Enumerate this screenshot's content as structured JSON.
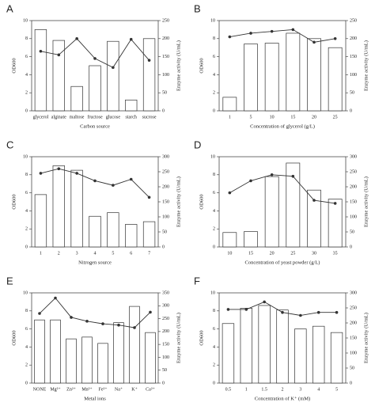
{
  "chart_data": [
    {
      "type": "combo",
      "title": "A",
      "xlabel": "Carbon source",
      "ylabel": "OD600",
      "y2label": "Enzyme activity (U/mL)",
      "categories": [
        "glycerol",
        "alginate",
        "maltose",
        "fructose",
        "glucose",
        "starch",
        "sucrose"
      ],
      "series": [
        {
          "color": "#ffffff",
          "values": [
            9.0,
            7.8,
            2.7,
            5.0,
            7.7,
            1.2,
            8.0
          ]
        },
        {
          "color": "#333333",
          "axis": "y2",
          "values": [
            165,
            155,
            200,
            145,
            120,
            198,
            140
          ]
        }
      ],
      "ylim": [
        0,
        10
      ],
      "yticks": [
        0,
        2,
        4,
        6,
        8,
        10
      ],
      "y2lim": [
        0,
        250
      ],
      "y2ticks": [
        0,
        50,
        100,
        150,
        200,
        250
      ]
    },
    {
      "type": "combo",
      "title": "B",
      "xlabel": "Concentration of glycerol (g/L)",
      "ylabel": "OD600",
      "y2label": "Enzyme activity (U/mL)",
      "categories": [
        "1",
        "5",
        "10",
        "15",
        "20",
        "25"
      ],
      "series": [
        {
          "color": "#ffffff",
          "values": [
            1.5,
            7.4,
            7.5,
            8.6,
            8.0,
            7.0
          ]
        },
        {
          "color": "#333333",
          "axis": "y2",
          "values": [
            205,
            215,
            220,
            225,
            190,
            200
          ]
        }
      ],
      "ylim": [
        0,
        10
      ],
      "yticks": [
        0,
        2,
        4,
        6,
        8,
        10
      ],
      "y2lim": [
        0,
        250
      ],
      "y2ticks": [
        0,
        50,
        100,
        150,
        200,
        250
      ]
    },
    {
      "type": "combo",
      "title": "C",
      "xlabel": "Nitrogen source",
      "ylabel": "OD600",
      "y2label": "Enzyme activity (U/mL)",
      "categories": [
        "1",
        "2",
        "3",
        "4",
        "5",
        "6",
        "7"
      ],
      "series": [
        {
          "color": "#ffffff",
          "values": [
            5.8,
            9.0,
            8.5,
            3.4,
            3.8,
            2.5,
            2.8
          ]
        },
        {
          "color": "#333333",
          "axis": "y2",
          "values": [
            245,
            260,
            245,
            220,
            205,
            225,
            165
          ]
        }
      ],
      "ylim": [
        0,
        10
      ],
      "yticks": [
        0,
        2,
        4,
        6,
        8,
        10
      ],
      "y2lim": [
        0,
        300
      ],
      "y2ticks": [
        0,
        50,
        100,
        150,
        200,
        250,
        300
      ]
    },
    {
      "type": "combo",
      "title": "D",
      "xlabel": "Concentration of yeast powder (g/L)",
      "ylabel": "OD600",
      "y2label": "Enzyme activity (U/mL)",
      "categories": [
        "10",
        "15",
        "20",
        "25",
        "30",
        "35"
      ],
      "series": [
        {
          "color": "#ffffff",
          "values": [
            1.6,
            1.7,
            7.8,
            9.3,
            6.3,
            5.3
          ]
        },
        {
          "color": "#333333",
          "axis": "y2",
          "values": [
            180,
            220,
            240,
            235,
            155,
            145
          ]
        }
      ],
      "ylim": [
        0,
        10
      ],
      "yticks": [
        0,
        2,
        4,
        6,
        8,
        10
      ],
      "y2lim": [
        0,
        300
      ],
      "y2ticks": [
        0,
        50,
        100,
        150,
        200,
        250,
        300
      ]
    },
    {
      "type": "combo",
      "title": "E",
      "xlabel": "Metal ions",
      "ylabel": "OD600",
      "y2label": "Enzyme activity (U/mL)",
      "categories": [
        "NONE",
        "Mg²⁺",
        "Zn²⁺",
        "Mn²⁺",
        "Fe²⁺",
        "Na⁺",
        "K⁺",
        "Ca²⁺"
      ],
      "series": [
        {
          "color": "#ffffff",
          "values": [
            7.0,
            7.0,
            4.9,
            5.1,
            4.4,
            6.7,
            8.5,
            5.6
          ]
        },
        {
          "color": "#333333",
          "axis": "y2",
          "values": [
            270,
            330,
            255,
            240,
            230,
            225,
            215,
            275
          ]
        }
      ],
      "ylim": [
        0,
        10
      ],
      "yticks": [
        0,
        2,
        4,
        6,
        8,
        10
      ],
      "y2lim": [
        0,
        350
      ],
      "y2ticks": [
        0,
        50,
        100,
        150,
        200,
        250,
        300,
        350
      ]
    },
    {
      "type": "combo",
      "title": "F",
      "xlabel": "Concentration of K⁺ (mM)",
      "ylabel": "OD600",
      "y2label": "Enzyme activity (U/mL)",
      "categories": [
        "0.5",
        "1",
        "1.5",
        "2",
        "3",
        "4",
        "5"
      ],
      "series": [
        {
          "color": "#ffffff",
          "values": [
            6.6,
            8.3,
            8.6,
            8.1,
            6.0,
            6.3,
            5.6
          ]
        },
        {
          "color": "#333333",
          "axis": "y2",
          "values": [
            245,
            245,
            270,
            235,
            225,
            235,
            235
          ]
        }
      ],
      "ylim": [
        0,
        10
      ],
      "yticks": [
        0,
        2,
        4,
        6,
        8,
        10
      ],
      "y2lim": [
        0,
        300
      ],
      "y2ticks": [
        0,
        50,
        100,
        150,
        200,
        250,
        300
      ]
    }
  ]
}
